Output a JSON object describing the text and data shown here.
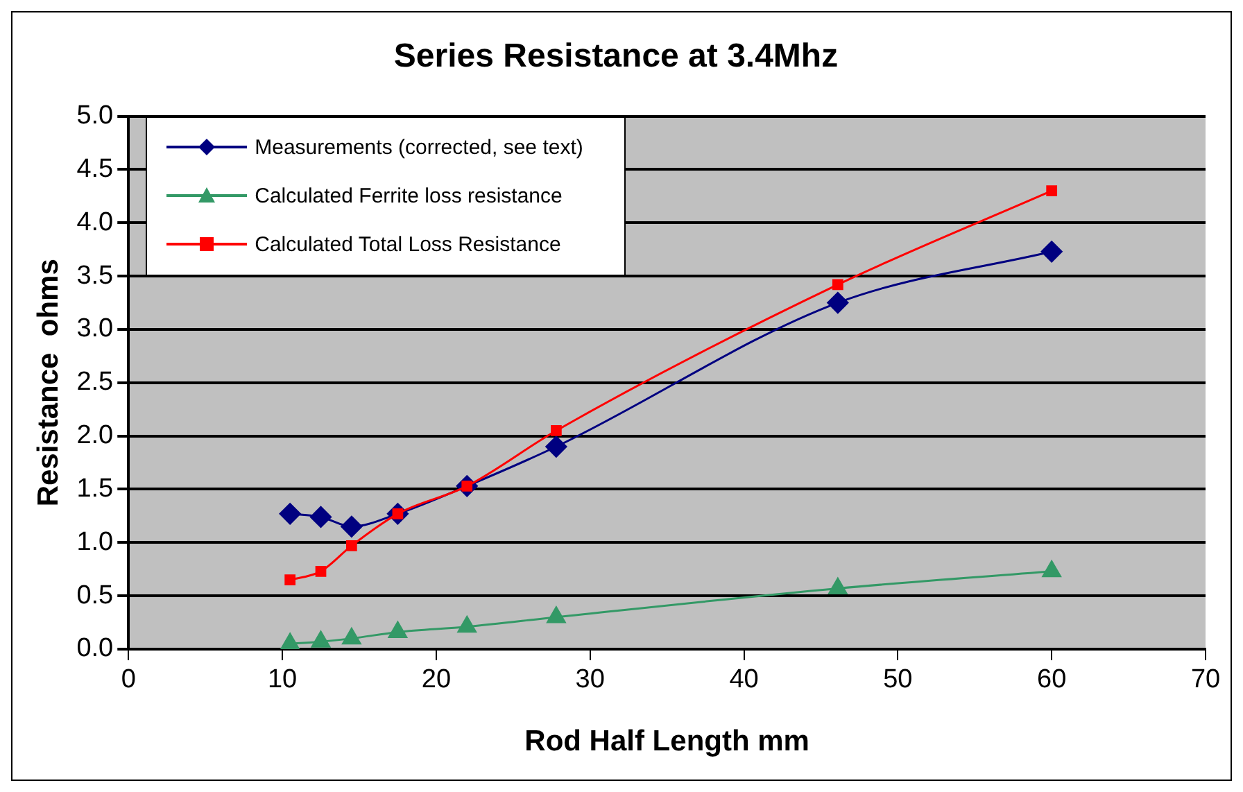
{
  "chart_data": {
    "type": "line",
    "title": "Series Resistance at 3.4Mhz",
    "xlabel": "Rod Half Length mm",
    "ylabel": "Resistance  ohms",
    "xlim": [
      0,
      70
    ],
    "xticks": [
      0,
      10,
      20,
      30,
      40,
      50,
      60,
      70
    ],
    "ylim": [
      0,
      5
    ],
    "yticks": [
      {
        "value": 0,
        "label": "0.0"
      },
      0.5,
      {
        "value": 1,
        "label": "1.0"
      },
      1.5,
      {
        "value": 2,
        "label": "2.0"
      },
      2.5,
      {
        "value": 3,
        "label": "3.0"
      },
      3.5,
      {
        "value": 4,
        "label": "4.0"
      },
      4.5,
      {
        "value": 5,
        "label": "5.0"
      }
    ],
    "grid": "y",
    "legend": "top left",
    "line_style": "solid",
    "x": [
      10.5,
      12.5,
      14.5,
      17.5,
      22,
      27.8,
      46.1,
      60
    ],
    "series": [
      {
        "name": "Measurements (corrected, see text)",
        "color": "#000080",
        "marker": "diamond",
        "values": [
          1.27,
          1.24,
          1.15,
          1.27,
          1.53,
          1.9,
          3.25,
          3.73
        ]
      },
      {
        "name": "Calculated Ferrite loss resistance",
        "color": "#339966",
        "marker": "triangle",
        "values": [
          0.05,
          0.07,
          0.1,
          0.16,
          0.21,
          0.3,
          0.57,
          0.73
        ]
      },
      {
        "name": "Calculated Total Loss Resistance",
        "color": "#ff0000",
        "marker": "square",
        "values": [
          0.65,
          0.73,
          0.97,
          1.27,
          1.53,
          2.05,
          3.42,
          4.3
        ]
      }
    ]
  }
}
